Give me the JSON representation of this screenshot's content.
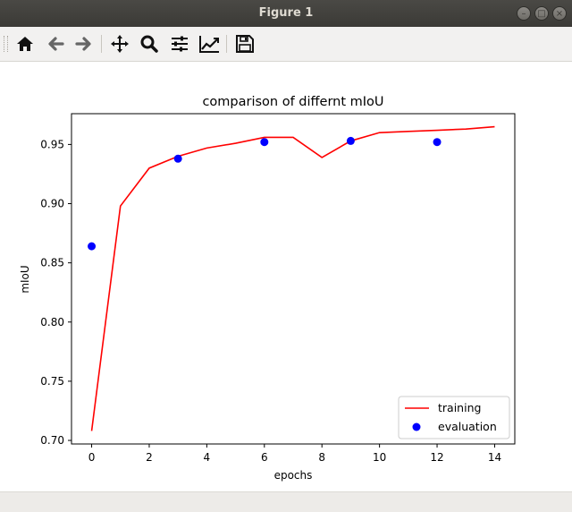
{
  "window": {
    "title": "Figure 1"
  },
  "toolbar": {
    "tools": [
      "home-icon",
      "back-arrow-icon",
      "forward-arrow-icon",
      "move-icon",
      "zoom-icon",
      "configure-subplots-icon",
      "edit-axis-icon",
      "save-icon"
    ]
  },
  "chart_data": {
    "type": "line",
    "title": "comparison of differnt mIoU",
    "xlabel": "epochs",
    "ylabel": "mIoU",
    "xlim": [
      -0.7,
      14.7
    ],
    "ylim": [
      0.697,
      0.976
    ],
    "xticks": [
      "0",
      "2",
      "4",
      "6",
      "8",
      "10",
      "12",
      "14"
    ],
    "xtick_values": [
      0,
      2,
      4,
      6,
      8,
      10,
      12,
      14
    ],
    "yticks": [
      "0.70",
      "0.75",
      "0.80",
      "0.85",
      "0.90",
      "0.95"
    ],
    "ytick_values": [
      0.7,
      0.75,
      0.8,
      0.85,
      0.9,
      0.95
    ],
    "grid": false,
    "legend_position": "lower-right",
    "series": [
      {
        "name": "training",
        "style": "line",
        "color": "#ff0000",
        "x": [
          0,
          1,
          2,
          3,
          4,
          5,
          6,
          7,
          8,
          9,
          10,
          11,
          12,
          13,
          14
        ],
        "values": [
          0.708,
          0.898,
          0.93,
          0.94,
          0.947,
          0.951,
          0.956,
          0.956,
          0.939,
          0.953,
          0.96,
          0.961,
          0.962,
          0.963,
          0.965
        ]
      },
      {
        "name": "evaluation",
        "style": "scatter",
        "color": "#0000ff",
        "x": [
          0,
          3,
          6,
          9,
          12
        ],
        "values": [
          0.864,
          0.938,
          0.952,
          0.953,
          0.952
        ]
      }
    ]
  }
}
